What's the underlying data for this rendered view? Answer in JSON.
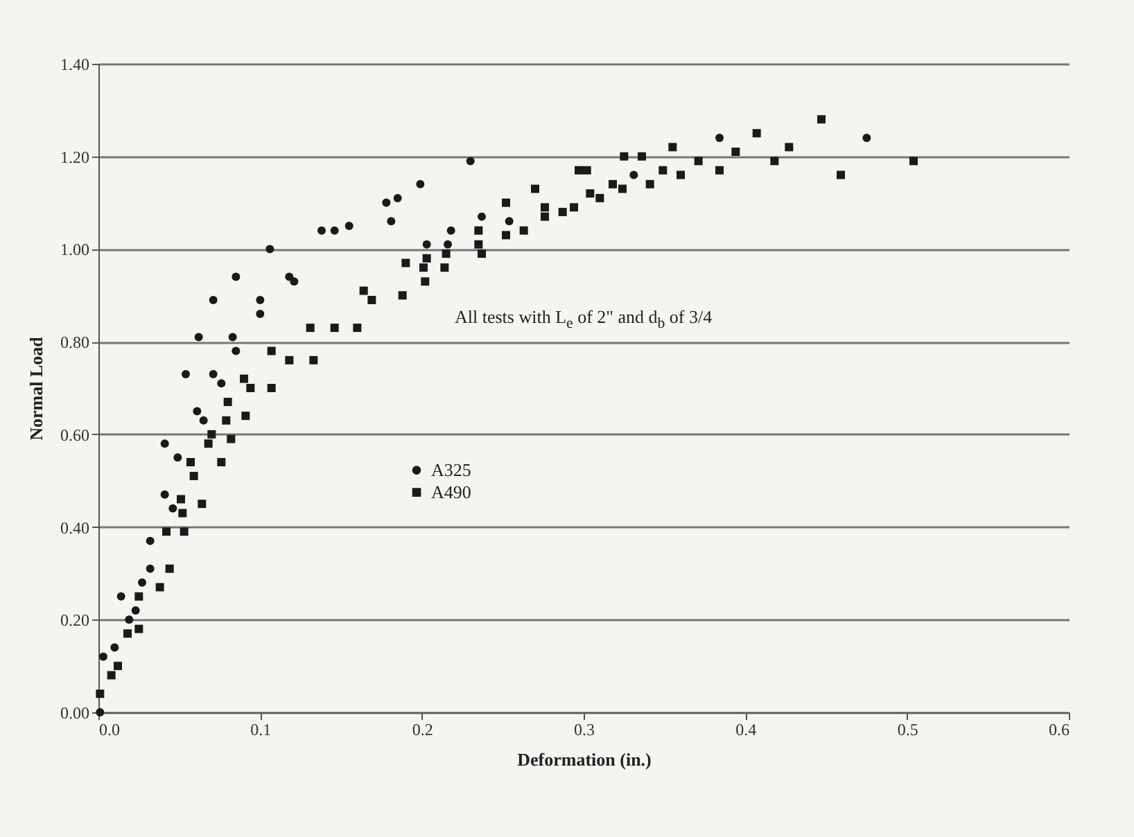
{
  "chart_data": {
    "type": "scatter",
    "xlabel": "Deformation (in.)",
    "ylabel": "Normal Load",
    "annotations": [
      "All tests with L$_{e}$ of 2\" and d$_{b}$ of 3/4"
    ],
    "xlim": [
      0,
      0.6
    ],
    "ylim": [
      0,
      1.4
    ],
    "xticks": [
      {
        "value": 0,
        "label": "0.0"
      },
      {
        "value": 0.1,
        "label": "0.1"
      },
      {
        "value": 0.2,
        "label": "0.2"
      },
      {
        "value": 0.3,
        "label": "0.3"
      },
      {
        "value": 0.4,
        "label": "0.4"
      },
      {
        "value": 0.5,
        "label": "0.5"
      },
      {
        "value": 0.6,
        "label": "0.6"
      }
    ],
    "yticks": [
      {
        "value": 0,
        "label": "0.00"
      },
      {
        "value": 0.2,
        "label": "0.20"
      },
      {
        "value": 0.4,
        "label": "0.40"
      },
      {
        "value": 0.6,
        "label": "0.60"
      },
      {
        "value": 0.8,
        "label": "0.80"
      },
      {
        "value": 1,
        "label": "1.00"
      },
      {
        "value": 1.2,
        "label": "1.20"
      },
      {
        "value": 1.4,
        "label": "1.40"
      }
    ],
    "grid": "y",
    "legend": "center",
    "series": [
      {
        "name": "A325",
        "color": "#1a1a1a",
        "marker": "circle",
        "x": [
          0.001,
          0.003,
          0.01,
          0.014,
          0.019,
          0.023,
          0.027,
          0.032,
          0.032,
          0.041,
          0.046,
          0.041,
          0.049,
          0.054,
          0.061,
          0.062,
          0.065,
          0.071,
          0.071,
          0.076,
          0.083,
          0.085,
          0.085,
          0.1,
          0.1,
          0.106,
          0.118,
          0.121,
          0.138,
          0.146,
          0.155,
          0.178,
          0.185,
          0.181,
          0.199,
          0.23,
          0.203,
          0.216,
          0.218,
          0.237,
          0.254,
          0.331,
          0.384,
          0.475
        ],
        "values": [
          0.0,
          0.12,
          0.14,
          0.25,
          0.2,
          0.22,
          0.28,
          0.31,
          0.37,
          0.47,
          0.44,
          0.58,
          0.55,
          0.73,
          0.65,
          0.81,
          0.63,
          0.89,
          0.73,
          0.71,
          0.81,
          0.78,
          0.94,
          0.89,
          0.86,
          1.0,
          0.94,
          0.93,
          1.04,
          1.04,
          1.05,
          1.1,
          1.11,
          1.06,
          1.14,
          1.19,
          1.01,
          1.01,
          1.04,
          1.07,
          1.06,
          1.16,
          1.24,
          1.24
        ]
      },
      {
        "name": "A490",
        "color": "#1a1a1a",
        "marker": "square",
        "x": [
          0.001,
          0.008,
          0.012,
          0.018,
          0.025,
          0.025,
          0.038,
          0.044,
          0.042,
          0.053,
          0.051,
          0.052,
          0.064,
          0.057,
          0.059,
          0.068,
          0.07,
          0.076,
          0.082,
          0.079,
          0.091,
          0.08,
          0.09,
          0.094,
          0.107,
          0.107,
          0.118,
          0.133,
          0.131,
          0.146,
          0.16,
          0.164,
          0.169,
          0.188,
          0.202,
          0.19,
          0.201,
          0.203,
          0.214,
          0.215,
          0.235,
          0.237,
          0.235,
          0.252,
          0.252,
          0.263,
          0.27,
          0.276,
          0.276,
          0.287,
          0.294,
          0.297,
          0.302,
          0.304,
          0.31,
          0.318,
          0.324,
          0.325,
          0.336,
          0.341,
          0.349,
          0.355,
          0.36,
          0.371,
          0.384,
          0.394,
          0.407,
          0.418,
          0.427,
          0.447,
          0.459,
          0.504
        ],
        "values": [
          0.04,
          0.08,
          0.1,
          0.17,
          0.18,
          0.25,
          0.27,
          0.31,
          0.39,
          0.39,
          0.46,
          0.43,
          0.45,
          0.54,
          0.51,
          0.58,
          0.6,
          0.54,
          0.59,
          0.63,
          0.64,
          0.67,
          0.72,
          0.7,
          0.7,
          0.78,
          0.76,
          0.76,
          0.83,
          0.83,
          0.83,
          0.91,
          0.89,
          0.9,
          0.93,
          0.97,
          0.96,
          0.98,
          0.96,
          0.99,
          1.01,
          0.99,
          1.04,
          1.03,
          1.1,
          1.04,
          1.13,
          1.09,
          1.07,
          1.08,
          1.09,
          1.17,
          1.17,
          1.12,
          1.11,
          1.14,
          1.13,
          1.2,
          1.2,
          1.14,
          1.17,
          1.22,
          1.16,
          1.19,
          1.17,
          1.21,
          1.25,
          1.19,
          1.22,
          1.28,
          1.16,
          1.19
        ]
      }
    ]
  }
}
